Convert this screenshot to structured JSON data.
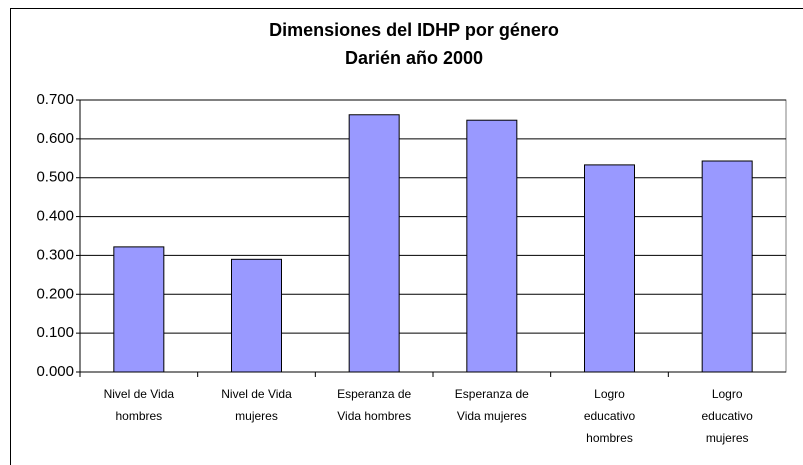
{
  "chart_data": {
    "type": "bar",
    "title": [
      "Dimensiones del IDHP por género",
      "Darién año 2000"
    ],
    "categories": [
      [
        "Nivel de Vida",
        "hombres"
      ],
      [
        "Nivel de Vida",
        "mujeres"
      ],
      [
        "Esperanza de",
        "Vida hombres"
      ],
      [
        "Esperanza de",
        "Vida mujeres"
      ],
      [
        "Logro",
        "educativo",
        "hombres"
      ],
      [
        "Logro",
        "educativo",
        "mujeres"
      ]
    ],
    "values": [
      0.322,
      0.29,
      0.662,
      0.648,
      0.533,
      0.543
    ],
    "color": "#9999ff",
    "ylim": [
      0,
      0.7
    ],
    "yticks": [
      {
        "value": 0,
        "label": "0.000"
      },
      {
        "value": 0.1,
        "label": "0.100"
      },
      {
        "value": 0.2,
        "label": "0.200"
      },
      {
        "value": 0.3,
        "label": "0.300"
      },
      {
        "value": 0.4,
        "label": "0.400"
      },
      {
        "value": 0.5,
        "label": "0.500"
      },
      {
        "value": 0.6,
        "label": "0.600"
      },
      {
        "value": 0.7,
        "label": "0.700"
      }
    ],
    "grid": true
  }
}
